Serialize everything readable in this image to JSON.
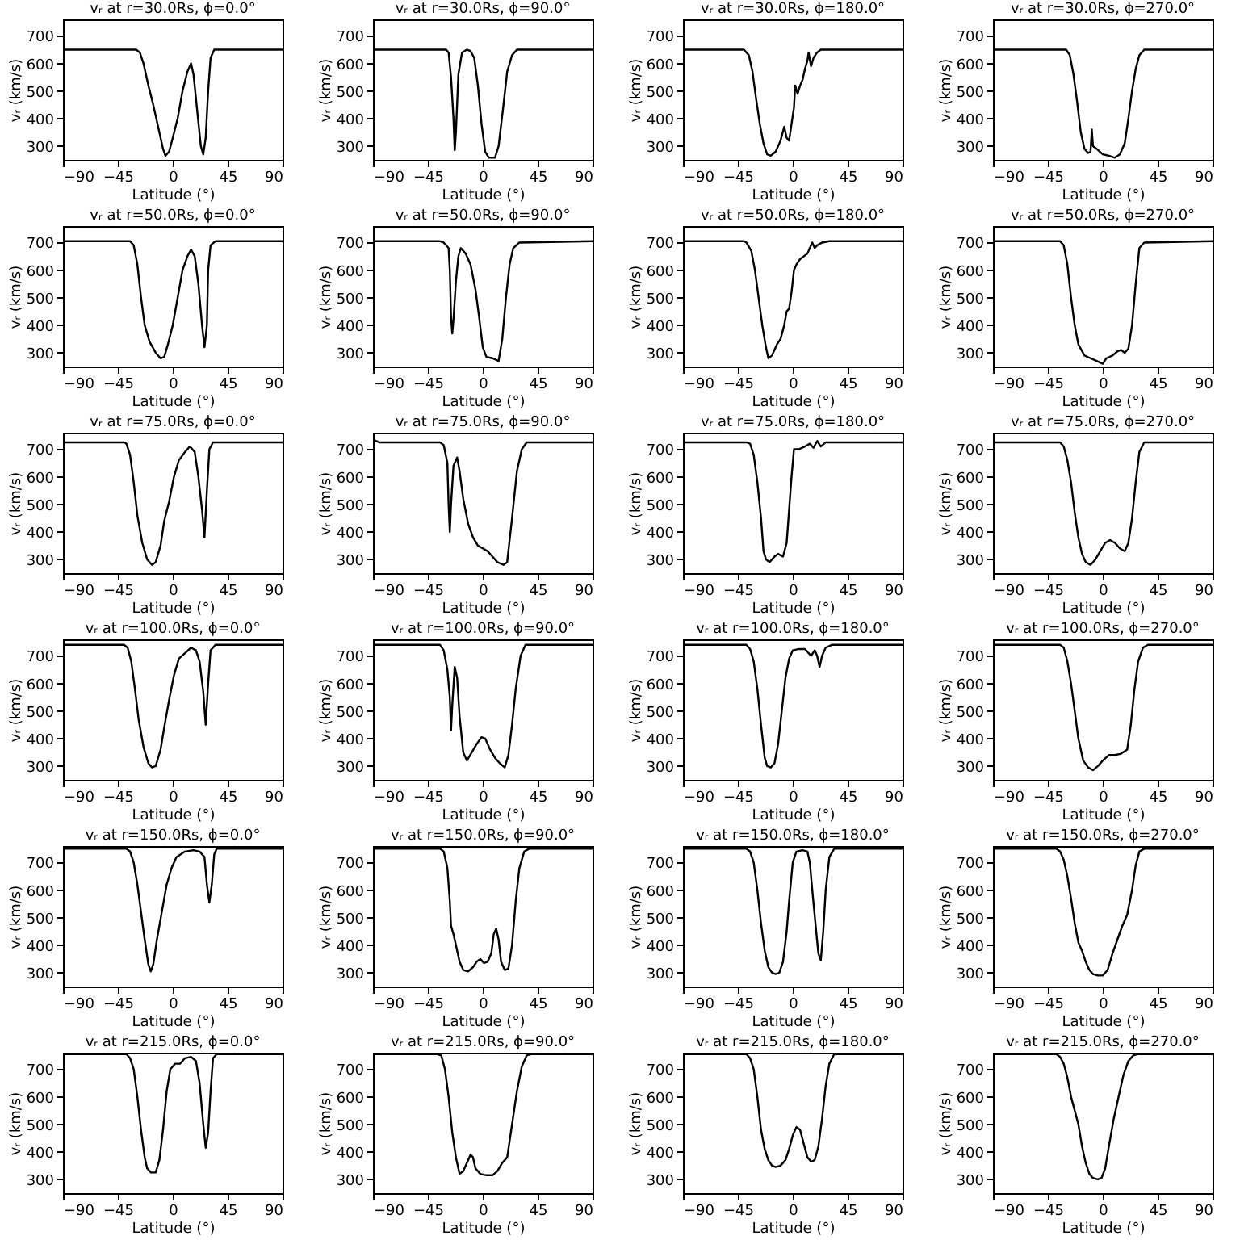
{
  "chart_data": [
    {
      "type": "line",
      "title": "vᵣ at r=30.0Rs, ϕ=0.0°",
      "xlabel": "Latitude (°)",
      "ylabel": "vᵣ (km/s)",
      "xlim": [
        -90,
        90
      ],
      "ylim": [
        250,
        760
      ],
      "xticks": [
        -90,
        -45,
        0,
        45,
        90
      ],
      "yticks": [
        300,
        400,
        500,
        600,
        700
      ],
      "series": [
        {
          "color": "#000000",
          "x": [
            -90,
            -30,
            -27,
            -24,
            -20,
            -16,
            -12,
            -8,
            -6,
            -3,
            0,
            4,
            8,
            12,
            15,
            17,
            20,
            23,
            25,
            27,
            29,
            31,
            34,
            90
          ],
          "values": [
            650,
            650,
            640,
            600,
            520,
            450,
            370,
            290,
            265,
            280,
            330,
            400,
            500,
            570,
            600,
            560,
            430,
            300,
            270,
            330,
            500,
            620,
            650,
            650
          ]
        }
      ]
    },
    {
      "type": "line",
      "title": "vᵣ at r=30.0Rs, ϕ=90.0°",
      "xlabel": "Latitude (°)",
      "ylabel": "vᵣ (km/s)",
      "xlim": [
        -90,
        90
      ],
      "ylim": [
        250,
        760
      ],
      "xticks": [
        -90,
        -45,
        0,
        45,
        90
      ],
      "yticks": [
        300,
        400,
        500,
        600,
        700
      ],
      "series": [
        {
          "color": "#000000",
          "x": [
            -90,
            -30,
            -28,
            -26,
            -24,
            -23,
            -22,
            -20,
            -17,
            -13,
            -10,
            -7,
            -4,
            -1,
            2,
            5,
            10,
            13,
            17,
            20,
            24,
            28,
            90
          ],
          "values": [
            650,
            650,
            640,
            550,
            400,
            285,
            350,
            560,
            640,
            650,
            645,
            620,
            520,
            380,
            280,
            258,
            258,
            300,
            450,
            570,
            630,
            650,
            650
          ]
        }
      ]
    },
    {
      "type": "line",
      "title": "vᵣ at r=30.0Rs, ϕ=180.0°",
      "xlabel": "Latitude (°)",
      "ylabel": "vᵣ (km/s)",
      "xlim": [
        -90,
        90
      ],
      "ylim": [
        250,
        760
      ],
      "xticks": [
        -90,
        -45,
        0,
        45,
        90
      ],
      "yticks": [
        300,
        400,
        500,
        600,
        700
      ],
      "series": [
        {
          "color": "#000000",
          "x": [
            -90,
            -40,
            -36,
            -33,
            -30,
            -27,
            -24,
            -21,
            -18,
            -14,
            -10,
            -7,
            -5,
            -3,
            -1,
            1,
            2,
            4,
            6,
            8,
            10,
            12,
            13,
            15,
            17,
            20,
            23,
            90
          ],
          "values": [
            650,
            650,
            630,
            570,
            470,
            380,
            310,
            270,
            265,
            280,
            320,
            370,
            330,
            320,
            380,
            440,
            520,
            490,
            520,
            540,
            580,
            610,
            640,
            590,
            620,
            640,
            650,
            650
          ]
        }
      ]
    },
    {
      "type": "line",
      "title": "vᵣ at r=30.0Rs, ϕ=270.0°",
      "xlabel": "Latitude (°)",
      "ylabel": "vᵣ (km/s)",
      "xlim": [
        -90,
        90
      ],
      "ylim": [
        250,
        760
      ],
      "xticks": [
        -90,
        -45,
        0,
        45,
        90
      ],
      "yticks": [
        300,
        400,
        500,
        600,
        700
      ],
      "series": [
        {
          "color": "#000000",
          "x": [
            -90,
            -30,
            -27,
            -24,
            -21,
            -18,
            -15,
            -12,
            -10,
            -9,
            -8,
            -5,
            0,
            5,
            10,
            14,
            18,
            21,
            24,
            27,
            30,
            34,
            90
          ],
          "values": [
            650,
            650,
            630,
            560,
            460,
            350,
            290,
            275,
            280,
            360,
            300,
            290,
            270,
            265,
            258,
            270,
            310,
            400,
            500,
            580,
            630,
            650,
            650
          ]
        }
      ]
    },
    {
      "type": "line",
      "title": "vᵣ at r=50.0Rs, ϕ=0.0°",
      "xlabel": "Latitude (°)",
      "ylabel": "vᵣ (km/s)",
      "xlim": [
        -90,
        90
      ],
      "ylim": [
        250,
        760
      ],
      "xticks": [
        -90,
        -45,
        0,
        45,
        90
      ],
      "yticks": [
        300,
        400,
        500,
        600,
        700
      ],
      "series": [
        {
          "color": "#000000",
          "x": [
            -90,
            -35,
            -32,
            -29,
            -26,
            -23,
            -19,
            -14,
            -10,
            -7,
            -4,
            0,
            4,
            8,
            12,
            15,
            18,
            21,
            24,
            26,
            28,
            29,
            31,
            35,
            90
          ],
          "values": [
            705,
            705,
            690,
            620,
            500,
            400,
            340,
            300,
            280,
            285,
            330,
            400,
            500,
            600,
            650,
            675,
            650,
            550,
            400,
            320,
            400,
            600,
            690,
            705,
            705
          ]
        }
      ]
    },
    {
      "type": "line",
      "title": "vᵣ at r=50.0Rs, ϕ=90.0°",
      "xlabel": "Latitude (°)",
      "ylabel": "vᵣ (km/s)",
      "xlim": [
        -90,
        90
      ],
      "ylim": [
        250,
        760
      ],
      "xticks": [
        -90,
        -45,
        0,
        45,
        90
      ],
      "yticks": [
        300,
        400,
        500,
        600,
        700
      ],
      "series": [
        {
          "color": "#000000",
          "x": [
            -90,
            -35,
            -32,
            -28,
            -27,
            -26,
            -25,
            -24,
            -22,
            -20,
            -18,
            -14,
            -10,
            -6,
            -3,
            0,
            3,
            8,
            13,
            16,
            19,
            22,
            25,
            30,
            90
          ],
          "values": [
            705,
            705,
            700,
            680,
            600,
            430,
            370,
            420,
            560,
            650,
            680,
            660,
            620,
            530,
            430,
            320,
            285,
            280,
            270,
            350,
            500,
            620,
            680,
            700,
            705
          ]
        }
      ]
    },
    {
      "type": "line",
      "title": "vᵣ at r=50.0Rs, ϕ=180.0°",
      "xlabel": "Latitude (°)",
      "ylabel": "vᵣ (km/s)",
      "xlim": [
        -90,
        90
      ],
      "ylim": [
        250,
        760
      ],
      "xticks": [
        -90,
        -45,
        0,
        45,
        90
      ],
      "yticks": [
        300,
        400,
        500,
        600,
        700
      ],
      "series": [
        {
          "color": "#000000",
          "x": [
            -90,
            -40,
            -38,
            -34,
            -31,
            -28,
            -25,
            -22,
            -20,
            -17,
            -13,
            -10,
            -7,
            -5,
            -3,
            -1,
            1,
            3,
            6,
            9,
            12,
            14,
            16,
            18,
            20,
            24,
            30,
            90
          ],
          "values": [
            705,
            705,
            700,
            670,
            600,
            500,
            400,
            320,
            280,
            290,
            330,
            350,
            400,
            450,
            460,
            520,
            600,
            620,
            640,
            650,
            660,
            680,
            700,
            680,
            690,
            700,
            705,
            705
          ]
        }
      ]
    },
    {
      "type": "line",
      "title": "vᵣ at r=50.0Rs, ϕ=270.0°",
      "xlabel": "Latitude (°)",
      "ylabel": "vᵣ (km/s)",
      "xlim": [
        -90,
        90
      ],
      "ylim": [
        250,
        760
      ],
      "xticks": [
        -90,
        -45,
        0,
        45,
        90
      ],
      "yticks": [
        300,
        400,
        500,
        600,
        700
      ],
      "series": [
        {
          "color": "#000000",
          "x": [
            -90,
            -35,
            -32,
            -29,
            -26,
            -23,
            -20,
            -15,
            -10,
            -5,
            0,
            3,
            8,
            12,
            15,
            18,
            21,
            24,
            27,
            30,
            34,
            90
          ],
          "values": [
            705,
            705,
            690,
            620,
            500,
            400,
            330,
            290,
            280,
            270,
            260,
            280,
            290,
            305,
            310,
            300,
            315,
            400,
            550,
            680,
            700,
            705
          ]
        }
      ]
    },
    {
      "type": "line",
      "title": "vᵣ at r=75.0Rs, ϕ=0.0°",
      "xlabel": "Latitude (°)",
      "ylabel": "vᵣ (km/s)",
      "xlim": [
        -90,
        90
      ],
      "ylim": [
        250,
        760
      ],
      "xticks": [
        -90,
        -45,
        0,
        45,
        90
      ],
      "yticks": [
        300,
        400,
        500,
        600,
        700
      ],
      "series": [
        {
          "color": "#000000",
          "x": [
            -90,
            -40,
            -38,
            -35,
            -32,
            -29,
            -25,
            -21,
            -17,
            -14,
            -10,
            -7,
            -3,
            1,
            5,
            10,
            14,
            18,
            21,
            24,
            26,
            28,
            30,
            33,
            90
          ],
          "values": [
            725,
            725,
            720,
            680,
            580,
            460,
            360,
            300,
            280,
            290,
            350,
            440,
            510,
            600,
            660,
            690,
            710,
            690,
            600,
            480,
            380,
            550,
            700,
            725,
            725
          ]
        }
      ]
    },
    {
      "type": "line",
      "title": "vᵣ at r=75.0Rs, ϕ=90.0°",
      "xlabel": "Latitude (°)",
      "ylabel": "vᵣ (km/s)",
      "xlim": [
        -90,
        90
      ],
      "ylim": [
        250,
        760
      ],
      "xticks": [
        -90,
        -45,
        0,
        45,
        90
      ],
      "yticks": [
        300,
        400,
        500,
        600,
        700
      ],
      "series": [
        {
          "color": "#000000",
          "x": [
            -90,
            -85,
            -35,
            -32,
            -29,
            -28,
            -27,
            -26,
            -24,
            -21,
            -19,
            -16,
            -12,
            -8,
            -4,
            0,
            4,
            8,
            12,
            17,
            20,
            24,
            28,
            32,
            36,
            90
          ],
          "values": [
            735,
            725,
            725,
            715,
            650,
            500,
            400,
            500,
            640,
            670,
            620,
            520,
            430,
            380,
            350,
            340,
            330,
            310,
            290,
            280,
            290,
            450,
            620,
            700,
            725,
            725
          ]
        }
      ]
    },
    {
      "type": "line",
      "title": "vᵣ at r=75.0Rs, ϕ=180.0°",
      "xlabel": "Latitude (°)",
      "ylabel": "vᵣ (km/s)",
      "xlim": [
        -90,
        90
      ],
      "ylim": [
        250,
        760
      ],
      "xticks": [
        -90,
        -45,
        0,
        45,
        90
      ],
      "yticks": [
        300,
        400,
        500,
        600,
        700
      ],
      "series": [
        {
          "color": "#000000",
          "x": [
            -90,
            -38,
            -35,
            -32,
            -29,
            -26,
            -24,
            -22,
            -19,
            -15,
            -12,
            -8,
            -5,
            -3,
            -1,
            1,
            5,
            10,
            14,
            17,
            20,
            23,
            27,
            90
          ],
          "values": [
            725,
            725,
            720,
            680,
            580,
            450,
            330,
            300,
            290,
            310,
            320,
            310,
            360,
            480,
            600,
            700,
            700,
            710,
            720,
            705,
            730,
            710,
            725,
            725
          ]
        }
      ]
    },
    {
      "type": "line",
      "title": "vᵣ at r=75.0Rs, ϕ=270.0°",
      "xlabel": "Latitude (°)",
      "ylabel": "vᵣ (km/s)",
      "xlim": [
        -90,
        90
      ],
      "ylim": [
        250,
        760
      ],
      "xticks": [
        -90,
        -45,
        0,
        45,
        90
      ],
      "yticks": [
        300,
        400,
        500,
        600,
        700
      ],
      "series": [
        {
          "color": "#000000",
          "x": [
            -90,
            -35,
            -32,
            -29,
            -26,
            -23,
            -20,
            -17,
            -14,
            -10,
            -6,
            -2,
            2,
            6,
            10,
            14,
            18,
            21,
            24,
            27,
            30,
            34,
            90
          ],
          "values": [
            725,
            725,
            710,
            660,
            580,
            470,
            380,
            320,
            290,
            280,
            300,
            330,
            360,
            370,
            360,
            340,
            330,
            360,
            450,
            580,
            690,
            725,
            725
          ]
        }
      ]
    },
    {
      "type": "line",
      "title": "vᵣ at r=100.0Rs, ϕ=0.0°",
      "xlabel": "Latitude (°)",
      "ylabel": "vᵣ (km/s)",
      "xlim": [
        -90,
        90
      ],
      "ylim": [
        250,
        760
      ],
      "xticks": [
        -90,
        -45,
        0,
        45,
        90
      ],
      "yticks": [
        300,
        400,
        500,
        600,
        700
      ],
      "series": [
        {
          "color": "#000000",
          "x": [
            -90,
            -40,
            -37,
            -34,
            -31,
            -28,
            -24,
            -20,
            -17,
            -14,
            -10,
            -7,
            -3,
            1,
            5,
            10,
            15,
            19,
            22,
            25,
            27,
            29,
            31,
            35,
            90
          ],
          "values": [
            740,
            740,
            730,
            680,
            580,
            470,
            370,
            310,
            295,
            300,
            360,
            440,
            540,
            630,
            690,
            710,
            730,
            720,
            680,
            570,
            450,
            600,
            720,
            740,
            740
          ]
        }
      ]
    },
    {
      "type": "line",
      "title": "vᵣ at r=100.0Rs, ϕ=90.0°",
      "xlabel": "Latitude (°)",
      "ylabel": "vᵣ (km/s)",
      "xlim": [
        -90,
        90
      ],
      "ylim": [
        250,
        760
      ],
      "xticks": [
        -90,
        -45,
        0,
        45,
        90
      ],
      "yticks": [
        300,
        400,
        500,
        600,
        700
      ],
      "series": [
        {
          "color": "#000000",
          "x": [
            -90,
            -35,
            -32,
            -29,
            -27,
            -26,
            -25,
            -23,
            -21,
            -19,
            -16,
            -13,
            -9,
            -5,
            -1,
            2,
            6,
            10,
            14,
            18,
            21,
            24,
            27,
            31,
            35,
            90
          ],
          "values": [
            740,
            740,
            720,
            650,
            550,
            430,
            520,
            660,
            620,
            480,
            350,
            320,
            350,
            380,
            405,
            400,
            360,
            330,
            310,
            295,
            340,
            450,
            580,
            700,
            740,
            740
          ]
        }
      ]
    },
    {
      "type": "line",
      "title": "vᵣ at r=100.0Rs, ϕ=180.0°",
      "xlabel": "Latitude (°)",
      "ylabel": "vᵣ (km/s)",
      "xlim": [
        -90,
        90
      ],
      "ylim": [
        250,
        760
      ],
      "xticks": [
        -90,
        -45,
        0,
        45,
        90
      ],
      "yticks": [
        300,
        400,
        500,
        600,
        700
      ],
      "series": [
        {
          "color": "#000000",
          "x": [
            -90,
            -38,
            -35,
            -32,
            -29,
            -26,
            -23,
            -21,
            -18,
            -15,
            -12,
            -9,
            -6,
            -3,
            0,
            5,
            10,
            15,
            18,
            20,
            22,
            24,
            27,
            32,
            90
          ],
          "values": [
            740,
            740,
            725,
            680,
            580,
            450,
            330,
            300,
            295,
            310,
            380,
            500,
            620,
            690,
            720,
            725,
            725,
            700,
            720,
            700,
            660,
            700,
            730,
            740,
            740
          ]
        }
      ]
    },
    {
      "type": "line",
      "title": "vᵣ at r=100.0Rs, ϕ=270.0°",
      "xlabel": "Latitude (°)",
      "ylabel": "vᵣ (km/s)",
      "xlim": [
        -90,
        90
      ],
      "ylim": [
        250,
        760
      ],
      "xticks": [
        -90,
        -45,
        0,
        45,
        90
      ],
      "yticks": [
        300,
        400,
        500,
        600,
        700
      ],
      "series": [
        {
          "color": "#000000",
          "x": [
            -90,
            -35,
            -32,
            -29,
            -26,
            -23,
            -20,
            -16,
            -12,
            -8,
            -4,
            0,
            5,
            10,
            15,
            20,
            23,
            26,
            29,
            33,
            37,
            90
          ],
          "values": [
            740,
            740,
            730,
            680,
            600,
            500,
            400,
            320,
            295,
            285,
            300,
            320,
            340,
            340,
            345,
            360,
            450,
            580,
            680,
            730,
            740,
            740
          ]
        }
      ]
    },
    {
      "type": "line",
      "title": "vᵣ at r=150.0Rs, ϕ=0.0°",
      "xlabel": "Latitude (°)",
      "ylabel": "vᵣ (km/s)",
      "xlim": [
        -90,
        90
      ],
      "ylim": [
        250,
        760
      ],
      "xticks": [
        -90,
        -45,
        0,
        45,
        90
      ],
      "yticks": [
        300,
        400,
        500,
        600,
        700
      ],
      "series": [
        {
          "color": "#000000",
          "x": [
            -90,
            -38,
            -35,
            -32,
            -29,
            -26,
            -23,
            -20,
            -18,
            -16,
            -13,
            -9,
            -5,
            -1,
            3,
            10,
            17,
            22,
            26,
            28,
            30,
            32,
            34,
            36,
            90
          ],
          "values": [
            750,
            750,
            740,
            700,
            620,
            520,
            420,
            330,
            305,
            330,
            420,
            520,
            620,
            680,
            720,
            740,
            745,
            740,
            720,
            620,
            555,
            620,
            730,
            750,
            750
          ]
        }
      ]
    },
    {
      "type": "line",
      "title": "vᵣ at r=150.0Rs, ϕ=90.0°",
      "xlabel": "Latitude (°)",
      "ylabel": "vᵣ (km/s)",
      "xlim": [
        -90,
        90
      ],
      "ylim": [
        250,
        760
      ],
      "xticks": [
        -90,
        -45,
        0,
        45,
        90
      ],
      "yticks": [
        300,
        400,
        500,
        600,
        700
      ],
      "series": [
        {
          "color": "#000000",
          "x": [
            -90,
            -35,
            -32,
            -29,
            -27,
            -26,
            -24,
            -22,
            -19,
            -16,
            -12,
            -8,
            -5,
            -2,
            1,
            4,
            7,
            9,
            11,
            13,
            15,
            18,
            21,
            24,
            27,
            30,
            34,
            38,
            90
          ],
          "values": [
            750,
            750,
            740,
            680,
            560,
            470,
            440,
            400,
            340,
            310,
            305,
            320,
            340,
            350,
            335,
            340,
            370,
            440,
            460,
            420,
            340,
            310,
            315,
            400,
            560,
            680,
            740,
            750,
            750
          ]
        }
      ]
    },
    {
      "type": "line",
      "title": "vᵣ at r=150.0Rs, ϕ=180.0°",
      "xlabel": "Latitude (°)",
      "ylabel": "vᵣ (km/s)",
      "xlim": [
        -90,
        90
      ],
      "ylim": [
        250,
        760
      ],
      "xticks": [
        -90,
        -45,
        0,
        45,
        90
      ],
      "yticks": [
        300,
        400,
        500,
        600,
        700
      ],
      "series": [
        {
          "color": "#000000",
          "x": [
            -90,
            -38,
            -35,
            -32,
            -29,
            -26,
            -23,
            -20,
            -17,
            -14,
            -11,
            -8,
            -5,
            -3,
            0,
            3,
            8,
            12,
            14,
            16,
            19,
            21,
            23,
            25,
            27,
            30,
            34,
            90
          ],
          "values": [
            750,
            750,
            740,
            700,
            600,
            480,
            380,
            320,
            300,
            295,
            300,
            340,
            450,
            560,
            700,
            740,
            745,
            740,
            700,
            600,
            460,
            370,
            345,
            450,
            600,
            720,
            750,
            750
          ]
        }
      ]
    },
    {
      "type": "line",
      "title": "vᵣ at r=150.0Rs, ϕ=270.0°",
      "xlabel": "Latitude (°)",
      "ylabel": "vᵣ (km/s)",
      "xlim": [
        -90,
        90
      ],
      "ylim": [
        250,
        760
      ],
      "xticks": [
        -90,
        -45,
        0,
        45,
        90
      ],
      "yticks": [
        300,
        400,
        500,
        600,
        700
      ],
      "series": [
        {
          "color": "#000000",
          "x": [
            -90,
            -38,
            -35,
            -32,
            -29,
            -26,
            -23,
            -20,
            -17,
            -14,
            -11,
            -8,
            -4,
            0,
            4,
            8,
            12,
            16,
            20,
            24,
            27,
            30,
            34,
            90
          ],
          "values": [
            750,
            750,
            740,
            710,
            650,
            570,
            480,
            410,
            380,
            340,
            310,
            295,
            290,
            290,
            310,
            370,
            420,
            470,
            510,
            600,
            690,
            740,
            750,
            750
          ]
        }
      ]
    },
    {
      "type": "line",
      "title": "vᵣ at r=215.0Rs, ϕ=0.0°",
      "xlabel": "Latitude (°)",
      "ylabel": "vᵣ (km/s)",
      "xlim": [
        -90,
        90
      ],
      "ylim": [
        250,
        760
      ],
      "xticks": [
        -90,
        -45,
        0,
        45,
        90
      ],
      "yticks": [
        300,
        400,
        500,
        600,
        700
      ],
      "series": [
        {
          "color": "#000000",
          "x": [
            -90,
            -38,
            -35,
            -32,
            -29,
            -26,
            -23,
            -21,
            -18,
            -14,
            -11,
            -8,
            -5,
            -2,
            2,
            6,
            10,
            15,
            19,
            22,
            25,
            27,
            29,
            31,
            33,
            36,
            90
          ],
          "values": [
            755,
            755,
            740,
            700,
            600,
            480,
            380,
            340,
            325,
            325,
            370,
            480,
            620,
            700,
            720,
            720,
            740,
            745,
            730,
            650,
            500,
            415,
            470,
            620,
            740,
            755,
            755
          ]
        }
      ]
    },
    {
      "type": "line",
      "title": "vᵣ at r=215.0Rs, ϕ=90.0°",
      "xlabel": "Latitude (°)",
      "ylabel": "vᵣ (km/s)",
      "xlim": [
        -90,
        90
      ],
      "ylim": [
        250,
        760
      ],
      "xticks": [
        -90,
        -45,
        0,
        45,
        90
      ],
      "yticks": [
        300,
        400,
        500,
        600,
        700
      ],
      "series": [
        {
          "color": "#000000",
          "x": [
            -90,
            -38,
            -34,
            -31,
            -28,
            -25,
            -22,
            -19,
            -16,
            -13,
            -10,
            -8,
            -6,
            -2,
            3,
            8,
            12,
            16,
            20,
            24,
            28,
            32,
            36,
            40,
            90
          ],
          "values": [
            755,
            755,
            750,
            700,
            600,
            470,
            380,
            320,
            330,
            360,
            390,
            380,
            340,
            320,
            315,
            315,
            330,
            360,
            380,
            500,
            620,
            710,
            750,
            755,
            755
          ]
        }
      ]
    },
    {
      "type": "line",
      "title": "vᵣ at r=215.0Rs, ϕ=180.0°",
      "xlabel": "Latitude (°)",
      "ylabel": "vᵣ (km/s)",
      "xlim": [
        -90,
        90
      ],
      "ylim": [
        250,
        760
      ],
      "xticks": [
        -90,
        -45,
        0,
        45,
        90
      ],
      "yticks": [
        300,
        400,
        500,
        600,
        700
      ],
      "series": [
        {
          "color": "#000000",
          "x": [
            -90,
            -38,
            -35,
            -32,
            -29,
            -26,
            -23,
            -20,
            -17,
            -14,
            -10,
            -6,
            -3,
            0,
            3,
            6,
            9,
            12,
            15,
            18,
            21,
            24,
            27,
            30,
            34,
            90
          ],
          "values": [
            755,
            755,
            740,
            700,
            600,
            480,
            410,
            370,
            350,
            345,
            350,
            370,
            410,
            460,
            490,
            480,
            430,
            380,
            365,
            370,
            420,
            520,
            640,
            720,
            755,
            755
          ]
        }
      ]
    },
    {
      "type": "line",
      "title": "vᵣ at r=215.0Rs, ϕ=270.0°",
      "xlabel": "Latitude (°)",
      "ylabel": "vᵣ (km/s)",
      "xlim": [
        -90,
        90
      ],
      "ylim": [
        250,
        760
      ],
      "xticks": [
        -90,
        -45,
        0,
        45,
        90
      ],
      "yticks": [
        300,
        400,
        500,
        600,
        700
      ],
      "series": [
        {
          "color": "#000000",
          "x": [
            -90,
            -38,
            -35,
            -32,
            -29,
            -26,
            -23,
            -20,
            -17,
            -14,
            -11,
            -8,
            -4,
            -1,
            2,
            5,
            9,
            13,
            17,
            21,
            25,
            29,
            90
          ],
          "values": [
            755,
            755,
            745,
            720,
            670,
            600,
            550,
            500,
            420,
            360,
            320,
            305,
            300,
            305,
            340,
            420,
            520,
            600,
            680,
            730,
            750,
            755,
            755
          ]
        }
      ]
    }
  ]
}
